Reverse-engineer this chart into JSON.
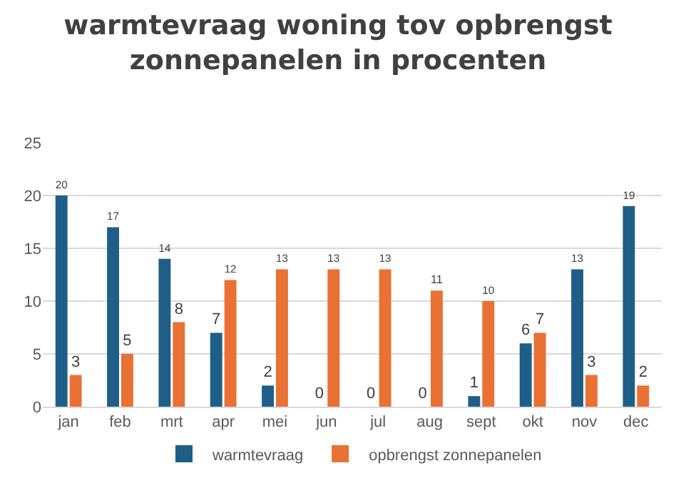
{
  "chart_data": {
    "type": "bar",
    "title": "warmtevraag woning tov opbrengst zonnepanelen in procenten",
    "categories": [
      "jan",
      "feb",
      "mrt",
      "apr",
      "mei",
      "jun",
      "jul",
      "aug",
      "sept",
      "okt",
      "nov",
      "dec"
    ],
    "series": [
      {
        "name": "warmtevraag",
        "color": "#1f5f87",
        "values": [
          20,
          17,
          14,
          7,
          2,
          0,
          0,
          0,
          1,
          6,
          13,
          19
        ]
      },
      {
        "name": "opbrengst zonnepanelen",
        "color": "#ea7134",
        "values": [
          3,
          5,
          8,
          12,
          13,
          13,
          13,
          11,
          10,
          7,
          3,
          2
        ]
      }
    ],
    "ylim": [
      0,
      25
    ],
    "yticks": [
      0,
      5,
      10,
      15,
      20,
      25
    ],
    "grid": "y",
    "legend": "bottom",
    "data_labels": true
  }
}
